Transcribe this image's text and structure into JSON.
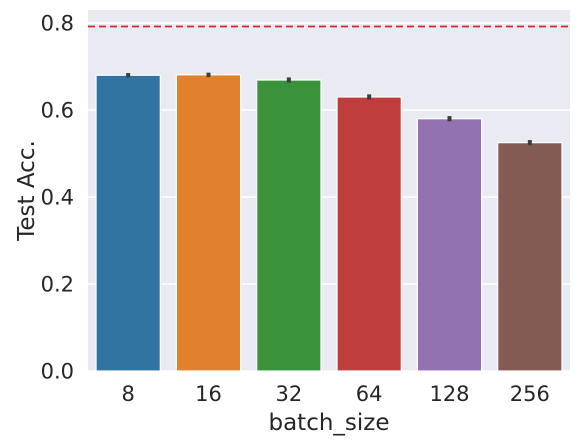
{
  "chart_data": {
    "type": "bar",
    "categories": [
      "8",
      "16",
      "32",
      "64",
      "128",
      "256"
    ],
    "values": [
      0.68,
      0.681,
      0.669,
      0.63,
      0.58,
      0.525
    ],
    "errors": [
      0.005,
      0.005,
      0.006,
      0.006,
      0.006,
      0.006
    ],
    "xlabel": "batch_size",
    "ylabel": "Test Acc.",
    "ylim": [
      0,
      0.83
    ],
    "yticks": [
      0.0,
      0.2,
      0.4,
      0.6,
      0.8
    ],
    "ytick_labels": [
      "0.0",
      "0.2",
      "0.4",
      "0.6",
      "0.8"
    ],
    "reference_line": {
      "value": 0.792,
      "style": "dashed",
      "color": "#d62728"
    },
    "grid": true,
    "colors": [
      "#3274a1",
      "#e1812c",
      "#3a923a",
      "#c03d3e",
      "#9372b2",
      "#845b53"
    ],
    "background": "#eaeaf2"
  }
}
